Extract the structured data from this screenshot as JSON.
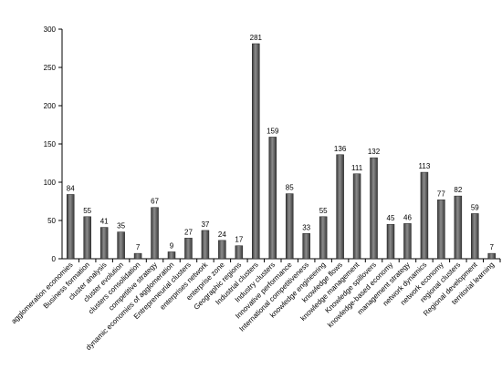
{
  "chart_data": {
    "type": "bar",
    "title": "",
    "xlabel": "",
    "ylabel": "",
    "ylim": [
      0,
      300
    ],
    "yticks": [
      0,
      50,
      100,
      150,
      200,
      250,
      300
    ],
    "grid": false,
    "legend": "none",
    "bar_color": "#3a3a3a",
    "bar_highlight": "#8c8c8c",
    "categories": [
      "agglomeration economies",
      "Business formation",
      "cluster analysis",
      "cluster evolution",
      "clusters consolidation",
      "competitive strategy",
      "dynamic economies of agglomeration",
      "Entrepreneurial clusters",
      "enterprises network",
      "enterprise zone",
      "Geographic regions",
      "Industrial clusters",
      "Industry clusters",
      "Innovative performance",
      "International competitiveness",
      "knowledge engineering",
      "knowledge flows",
      "knowledge management",
      "Knowledge spillovers",
      "knowledge-based economy",
      "management strategy",
      "network dynamics",
      "network economy",
      "regional clusters",
      "Regional development",
      "territorial learning"
    ],
    "values": [
      84,
      55,
      41,
      35,
      7,
      67,
      9,
      27,
      37,
      24,
      17,
      281,
      159,
      85,
      33,
      55,
      136,
      111,
      132,
      45,
      46,
      113,
      77,
      82,
      59,
      7
    ]
  }
}
